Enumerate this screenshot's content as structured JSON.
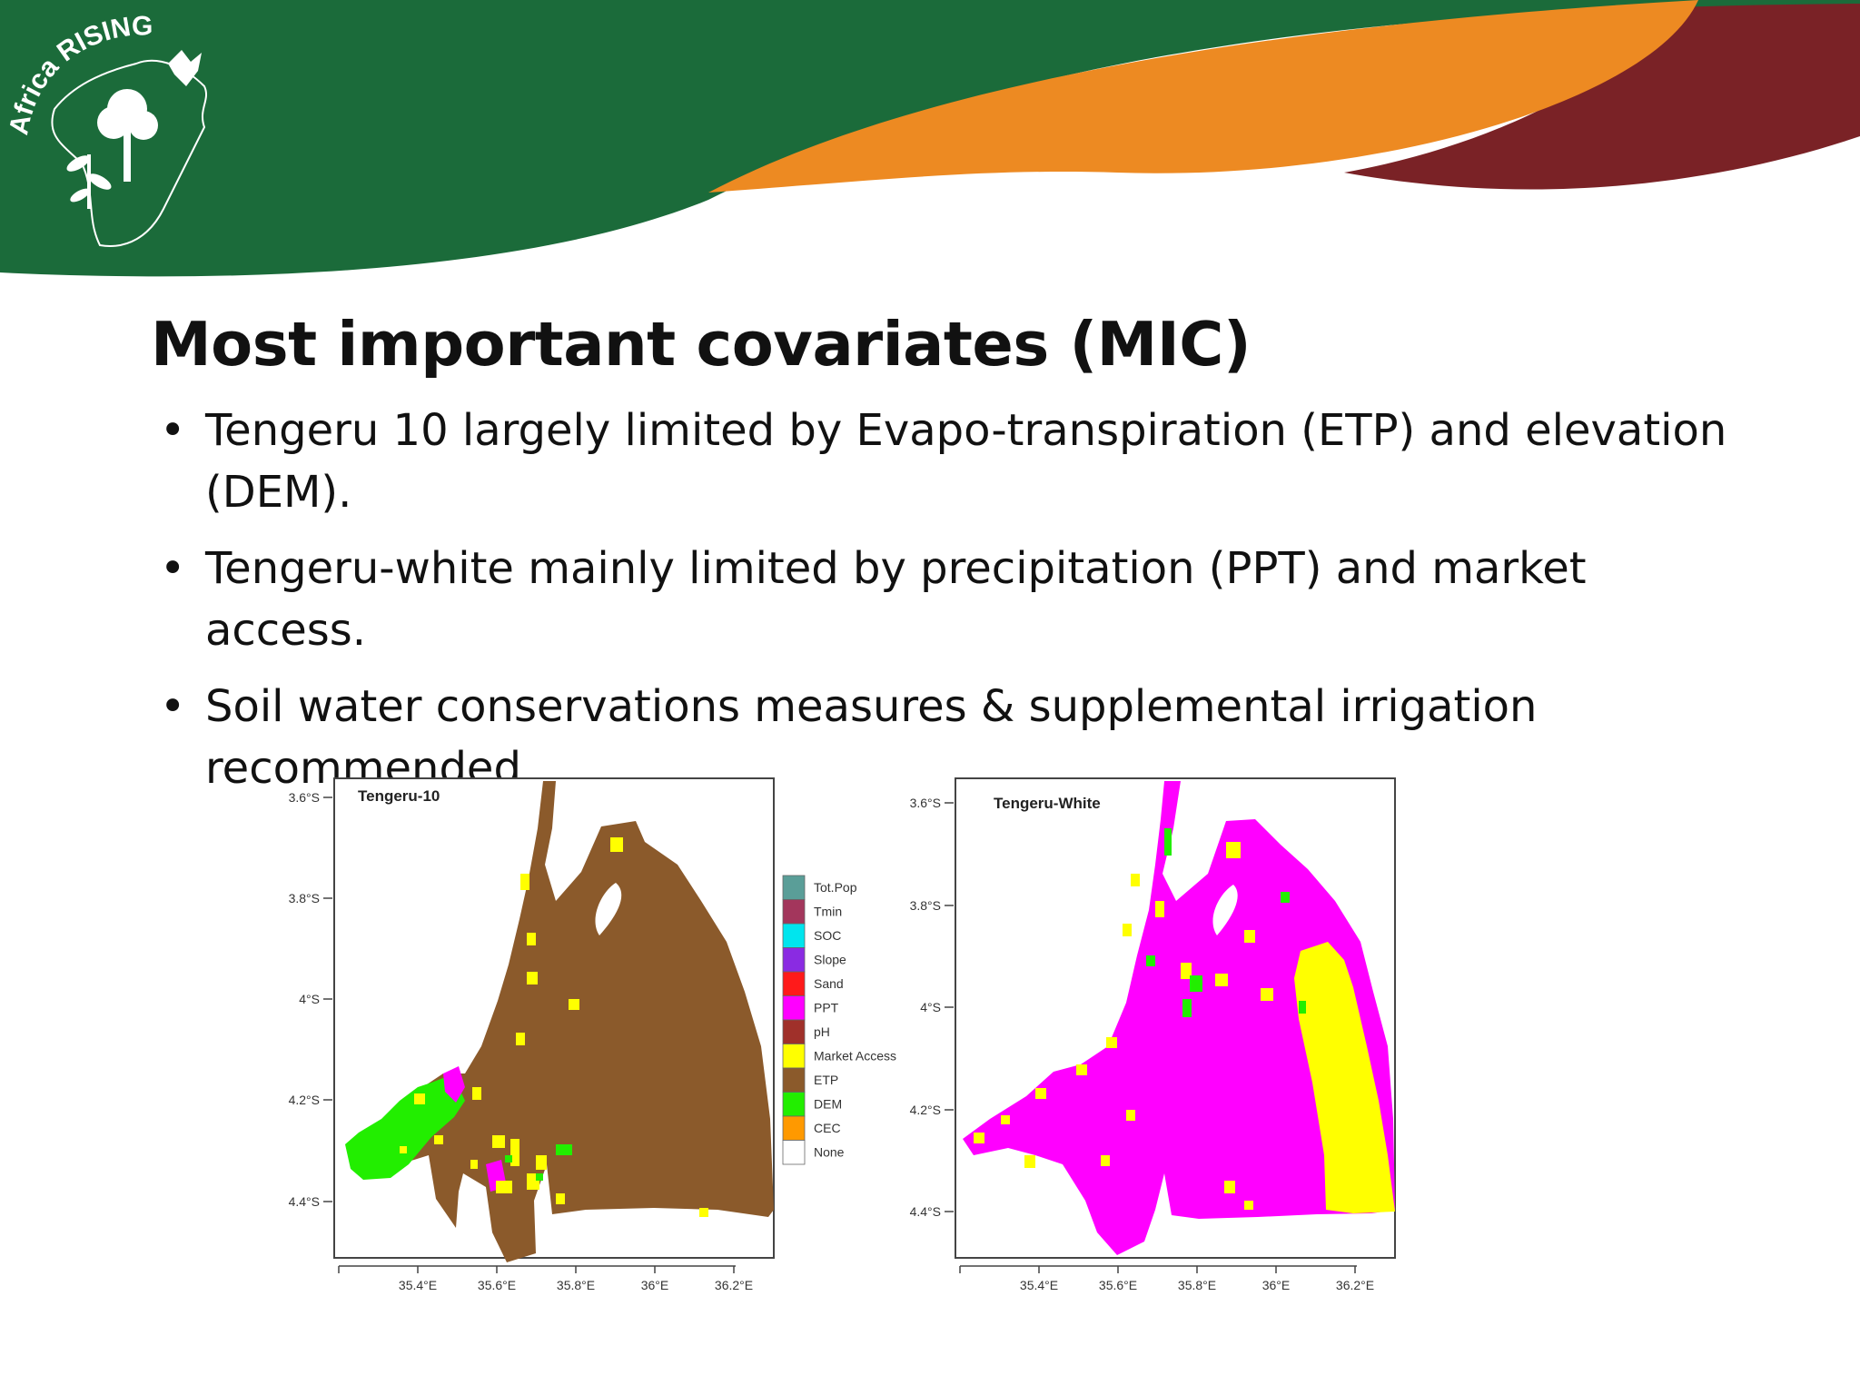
{
  "logo": {
    "text": "Africa RISING"
  },
  "slide": {
    "title": "Most important covariates (MIC)",
    "bullets": [
      "Tengeru 10 largely limited by Evapo-transpiration (ETP) and elevation (DEM).",
      "Tengeru-white mainly limited by precipitation (PPT) and market access.",
      "Soil water conservations measures & supplemental irrigation recommended."
    ]
  },
  "maps": [
    {
      "title": "Tengeru-10",
      "dominant_covariate": "ETP"
    },
    {
      "title": "Tengeru-White",
      "dominant_covariate": "PPT"
    }
  ],
  "axes": {
    "y_ticks": [
      "3.6°S",
      "3.8°S",
      "4°S",
      "4.2°S",
      "4.4°S"
    ],
    "x_ticks": [
      "35.4°E",
      "35.6°E",
      "35.8°E",
      "36°E",
      "36.2°E"
    ]
  },
  "legend": [
    {
      "label": "Tot.Pop",
      "color": "#5a9e98"
    },
    {
      "label": "Tmin",
      "color": "#a3365c"
    },
    {
      "label": "SOC",
      "color": "#00e5ee"
    },
    {
      "label": "Slope",
      "color": "#8a2be2"
    },
    {
      "label": "Sand",
      "color": "#ff1a1a"
    },
    {
      "label": "PPT",
      "color": "#ff00ff"
    },
    {
      "label": "pH",
      "color": "#a0302a"
    },
    {
      "label": "Market Access",
      "color": "#ffff00"
    },
    {
      "label": "ETP",
      "color": "#8b5a2b"
    },
    {
      "label": "DEM",
      "color": "#22ee00"
    },
    {
      "label": "CEC",
      "color": "#ff9900"
    },
    {
      "label": "None",
      "color": "#ffffff"
    }
  ],
  "colors": {
    "banner_green": "#1b6b3a",
    "banner_orange": "#ed8a22",
    "banner_maroon": "#7a2226"
  }
}
